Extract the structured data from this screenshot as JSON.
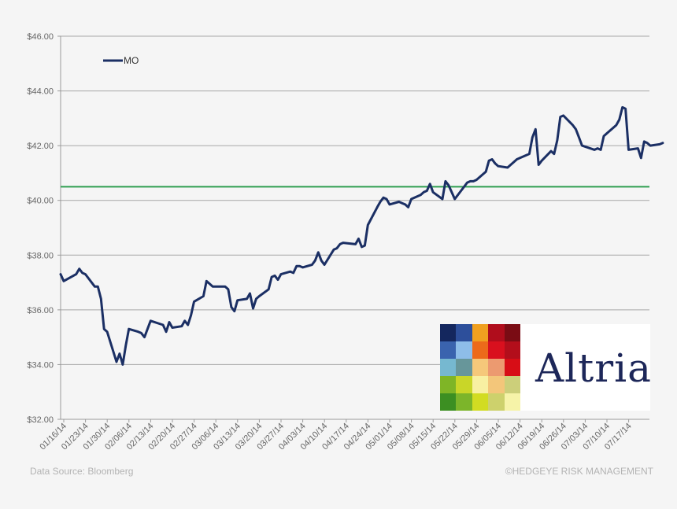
{
  "chart_data": {
    "type": "line",
    "title": "",
    "xlabel": "",
    "ylabel": "",
    "ylim": [
      32,
      46
    ],
    "y_ticks": [
      "$32.00",
      "$34.00",
      "$36.00",
      "$38.00",
      "$40.00",
      "$42.00",
      "$44.00",
      "$46.00"
    ],
    "y_tick_values": [
      32,
      34,
      36,
      38,
      40,
      42,
      44,
      46
    ],
    "x_start": "2014-01-16",
    "x_end": "2014-07-23",
    "x_ticks": [
      "01/16/14",
      "01/23/14",
      "01/30/14",
      "02/06/14",
      "02/13/14",
      "02/20/14",
      "02/27/14",
      "03/06/14",
      "03/13/14",
      "03/20/14",
      "03/27/14",
      "04/03/14",
      "04/10/14",
      "04/17/14",
      "04/24/14",
      "05/01/14",
      "05/08/14",
      "05/15/14",
      "05/22/14",
      "05/29/14",
      "06/05/14",
      "06/12/14",
      "06/19/14",
      "06/26/14",
      "07/03/14",
      "07/10/14",
      "07/17/14"
    ],
    "grid": "horizontal",
    "legend_position": "top-left",
    "series": [
      {
        "name": "MO",
        "color": "#1b2f64",
        "points": [
          [
            "2014-01-16",
            37.3
          ],
          [
            "2014-01-17",
            37.05
          ],
          [
            "2014-01-21",
            37.3
          ],
          [
            "2014-01-22",
            37.5
          ],
          [
            "2014-01-23",
            37.35
          ],
          [
            "2014-01-24",
            37.3
          ],
          [
            "2014-01-27",
            36.85
          ],
          [
            "2014-01-28",
            36.85
          ],
          [
            "2014-01-29",
            36.4
          ],
          [
            "2014-01-30",
            35.3
          ],
          [
            "2014-01-31",
            35.2
          ],
          [
            "2014-02-03",
            34.1
          ],
          [
            "2014-02-04",
            34.4
          ],
          [
            "2014-02-05",
            34.0
          ],
          [
            "2014-02-06",
            34.7
          ],
          [
            "2014-02-07",
            35.3
          ],
          [
            "2014-02-10",
            35.2
          ],
          [
            "2014-02-11",
            35.15
          ],
          [
            "2014-02-12",
            35.0
          ],
          [
            "2014-02-13",
            35.3
          ],
          [
            "2014-02-14",
            35.6
          ],
          [
            "2014-02-18",
            35.45
          ],
          [
            "2014-02-19",
            35.2
          ],
          [
            "2014-02-20",
            35.55
          ],
          [
            "2014-02-21",
            35.35
          ],
          [
            "2014-02-24",
            35.4
          ],
          [
            "2014-02-25",
            35.6
          ],
          [
            "2014-02-26",
            35.45
          ],
          [
            "2014-02-27",
            35.8
          ],
          [
            "2014-02-28",
            36.3
          ],
          [
            "2014-03-03",
            36.5
          ],
          [
            "2014-03-04",
            37.05
          ],
          [
            "2014-03-05",
            36.95
          ],
          [
            "2014-03-06",
            36.85
          ],
          [
            "2014-03-07",
            36.85
          ],
          [
            "2014-03-10",
            36.85
          ],
          [
            "2014-03-11",
            36.75
          ],
          [
            "2014-03-12",
            36.1
          ],
          [
            "2014-03-13",
            35.95
          ],
          [
            "2014-03-14",
            36.35
          ],
          [
            "2014-03-17",
            36.4
          ],
          [
            "2014-03-18",
            36.6
          ],
          [
            "2014-03-19",
            36.05
          ],
          [
            "2014-03-20",
            36.4
          ],
          [
            "2014-03-21",
            36.5
          ],
          [
            "2014-03-24",
            36.75
          ],
          [
            "2014-03-25",
            37.2
          ],
          [
            "2014-03-26",
            37.25
          ],
          [
            "2014-03-27",
            37.1
          ],
          [
            "2014-03-28",
            37.3
          ],
          [
            "2014-03-31",
            37.4
          ],
          [
            "2014-04-01",
            37.35
          ],
          [
            "2014-04-02",
            37.6
          ],
          [
            "2014-04-03",
            37.6
          ],
          [
            "2014-04-04",
            37.55
          ],
          [
            "2014-04-07",
            37.65
          ],
          [
            "2014-04-08",
            37.8
          ],
          [
            "2014-04-09",
            38.1
          ],
          [
            "2014-04-10",
            37.8
          ],
          [
            "2014-04-11",
            37.65
          ],
          [
            "2014-04-14",
            38.2
          ],
          [
            "2014-04-15",
            38.25
          ],
          [
            "2014-04-16",
            38.4
          ],
          [
            "2014-04-17",
            38.45
          ],
          [
            "2014-04-21",
            38.4
          ],
          [
            "2014-04-22",
            38.6
          ],
          [
            "2014-04-23",
            38.3
          ],
          [
            "2014-04-24",
            38.35
          ],
          [
            "2014-04-25",
            39.1
          ],
          [
            "2014-04-28",
            39.75
          ],
          [
            "2014-04-29",
            39.95
          ],
          [
            "2014-04-30",
            40.1
          ],
          [
            "2014-05-01",
            40.05
          ],
          [
            "2014-05-02",
            39.85
          ],
          [
            "2014-05-05",
            39.95
          ],
          [
            "2014-05-06",
            39.9
          ],
          [
            "2014-05-07",
            39.85
          ],
          [
            "2014-05-08",
            39.75
          ],
          [
            "2014-05-09",
            40.05
          ],
          [
            "2014-05-12",
            40.2
          ],
          [
            "2014-05-13",
            40.3
          ],
          [
            "2014-05-14",
            40.35
          ],
          [
            "2014-05-15",
            40.6
          ],
          [
            "2014-05-16",
            40.3
          ],
          [
            "2014-05-19",
            40.05
          ],
          [
            "2014-05-20",
            40.7
          ],
          [
            "2014-05-21",
            40.55
          ],
          [
            "2014-05-22",
            40.3
          ],
          [
            "2014-05-23",
            40.05
          ],
          [
            "2014-05-27",
            40.65
          ],
          [
            "2014-05-28",
            40.7
          ],
          [
            "2014-05-29",
            40.7
          ],
          [
            "2014-05-30",
            40.75
          ],
          [
            "2014-06-02",
            41.05
          ],
          [
            "2014-06-03",
            41.45
          ],
          [
            "2014-06-04",
            41.5
          ],
          [
            "2014-06-05",
            41.35
          ],
          [
            "2014-06-06",
            41.25
          ],
          [
            "2014-06-09",
            41.2
          ],
          [
            "2014-06-10",
            41.3
          ],
          [
            "2014-06-11",
            41.4
          ],
          [
            "2014-06-12",
            41.5
          ],
          [
            "2014-06-13",
            41.55
          ],
          [
            "2014-06-16",
            41.7
          ],
          [
            "2014-06-17",
            42.3
          ],
          [
            "2014-06-18",
            42.6
          ],
          [
            "2014-06-19",
            41.3
          ],
          [
            "2014-06-20",
            41.45
          ],
          [
            "2014-06-23",
            41.8
          ],
          [
            "2014-06-24",
            41.7
          ],
          [
            "2014-06-25",
            42.2
          ],
          [
            "2014-06-26",
            43.05
          ],
          [
            "2014-06-27",
            43.1
          ],
          [
            "2014-06-30",
            42.75
          ],
          [
            "2014-07-01",
            42.6
          ],
          [
            "2014-07-02",
            42.3
          ],
          [
            "2014-07-03",
            42.0
          ],
          [
            "2014-07-07",
            41.85
          ],
          [
            "2014-07-08",
            41.9
          ],
          [
            "2014-07-09",
            41.85
          ],
          [
            "2014-07-10",
            42.35
          ],
          [
            "2014-07-11",
            42.45
          ],
          [
            "2014-07-14",
            42.75
          ],
          [
            "2014-07-15",
            42.95
          ],
          [
            "2014-07-16",
            43.4
          ],
          [
            "2014-07-17",
            43.35
          ],
          [
            "2014-07-18",
            41.85
          ],
          [
            "2014-07-21",
            41.9
          ],
          [
            "2014-07-22",
            41.55
          ],
          [
            "2014-07-23",
            42.15
          ],
          [
            "2014-07-24",
            42.1
          ],
          [
            "2014-07-25",
            42.0
          ],
          [
            "2014-07-28",
            42.05
          ],
          [
            "2014-07-29",
            42.1
          ]
        ]
      }
    ],
    "reference_line": {
      "y": 40.5,
      "color": "#2e9e4f"
    }
  },
  "footer": {
    "source": "Data Source: Bloomberg",
    "copyright": "©HEDGEYE RISK MANAGEMENT"
  },
  "logo": {
    "wordmark": "Altria",
    "mosaic_colors": [
      [
        "#14275e",
        "#2d4f9b",
        "#f0a020",
        "#b00d1c",
        "#7a0c14"
      ],
      [
        "#3a63ae",
        "#8ebde9",
        "#ec6a1a",
        "#d9101e",
        "#b30e1b"
      ],
      [
        "#76b8d0",
        "#67969a",
        "#f5c87a",
        "#ec9a70",
        "#d70d16"
      ],
      [
        "#7fb526",
        "#c9d628",
        "#f8f0a2",
        "#f3c67a",
        "#cccf7a"
      ],
      [
        "#3c8f22",
        "#7cb52a",
        "#d2dc22",
        "#cdd16c",
        "#f6f3a8"
      ]
    ]
  }
}
